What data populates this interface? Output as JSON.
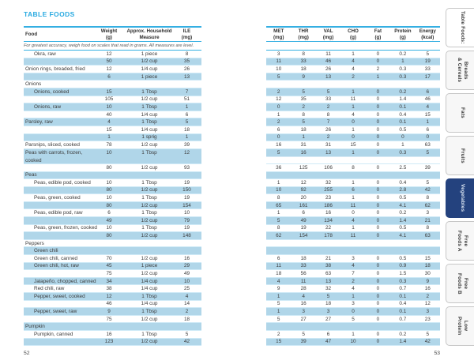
{
  "colors": {
    "accent": "#29aae1",
    "row_highlight": "#b0d6e9",
    "active_tab": "#24427e"
  },
  "page_left": {
    "title": "TABLE FOODS",
    "note": "For greatest accuracy, weigh food on scales that read in grams. All measures are level.",
    "page_number": "52"
  },
  "page_right": {
    "page_number": "53"
  },
  "left_columns": [
    {
      "label": "Food",
      "unit": ""
    },
    {
      "label": "Weight",
      "unit": "(g)"
    },
    {
      "label": "Approx. Household",
      "unit": "Measure"
    },
    {
      "label": "ILE",
      "unit": "(mg)"
    }
  ],
  "right_columns": [
    {
      "label": "MET",
      "unit": "(mg)"
    },
    {
      "label": "THR",
      "unit": "(mg)"
    },
    {
      "label": "VAL",
      "unit": "(mg)"
    },
    {
      "label": "CHO",
      "unit": "(g)"
    },
    {
      "label": "Fat",
      "unit": "(g)"
    },
    {
      "label": "Protein",
      "unit": "(g)"
    },
    {
      "label": "Energy",
      "unit": "(kcal)"
    }
  ],
  "rows": [
    {
      "type": "item",
      "food": "Okra, raw",
      "indent": true,
      "weight": "12",
      "measure": "1 piece",
      "ile": "8",
      "vals": [
        "3",
        "8",
        "11",
        "1",
        "0",
        "0.2",
        "5"
      ],
      "hl": false
    },
    {
      "type": "item",
      "food": "",
      "indent": false,
      "weight": "50",
      "measure": "1/2 cup",
      "ile": "35",
      "vals": [
        "11",
        "33",
        "46",
        "4",
        "0",
        "1",
        "19"
      ],
      "hl": true
    },
    {
      "type": "item",
      "food": "Onion rings, breaded, fried",
      "indent": false,
      "weight": "12",
      "measure": "1/4 cup",
      "ile": "26",
      "vals": [
        "10",
        "18",
        "26",
        "4",
        "2",
        "0.3",
        "33"
      ],
      "hl": false
    },
    {
      "type": "item",
      "food": "",
      "indent": false,
      "weight": "6",
      "measure": "1 piece",
      "ile": "13",
      "vals": [
        "5",
        "9",
        "13",
        "2",
        "1",
        "0.3",
        "17"
      ],
      "hl": true
    },
    {
      "type": "section",
      "food": "Onions",
      "indent": false,
      "hl": false
    },
    {
      "type": "item",
      "food": "Onions, cooked",
      "indent": true,
      "weight": "15",
      "measure": "1 Tbsp",
      "ile": "7",
      "vals": [
        "2",
        "5",
        "5",
        "1",
        "0",
        "0.2",
        "6"
      ],
      "hl": true
    },
    {
      "type": "item",
      "food": "",
      "indent": false,
      "weight": "105",
      "measure": "1/2 cup",
      "ile": "51",
      "vals": [
        "12",
        "35",
        "33",
        "11",
        "0",
        "1.4",
        "46"
      ],
      "hl": false
    },
    {
      "type": "item",
      "food": "Onions, raw",
      "indent": true,
      "weight": "10",
      "measure": "1 Tbsp",
      "ile": "1",
      "vals": [
        "0",
        "2",
        "2",
        "1",
        "0",
        "0.1",
        "4"
      ],
      "hl": true
    },
    {
      "type": "item",
      "food": "",
      "indent": false,
      "weight": "40",
      "measure": "1/4 cup",
      "ile": "6",
      "vals": [
        "1",
        "8",
        "8",
        "4",
        "0",
        "0.4",
        "15"
      ],
      "hl": false
    },
    {
      "type": "item",
      "food": "Parsley, raw",
      "indent": false,
      "weight": "4",
      "measure": "1 Tbsp",
      "ile": "5",
      "vals": [
        "2",
        "5",
        "7",
        "0",
        "0",
        "0.1",
        "1"
      ],
      "hl": true
    },
    {
      "type": "item",
      "food": "",
      "indent": false,
      "weight": "15",
      "measure": "1/4 cup",
      "ile": "18",
      "vals": [
        "6",
        "18",
        "26",
        "1",
        "0",
        "0.5",
        "6"
      ],
      "hl": false
    },
    {
      "type": "item",
      "food": "",
      "indent": false,
      "weight": "1",
      "measure": "1 sprig",
      "ile": "1",
      "vals": [
        "0",
        "1",
        "2",
        "0",
        "0",
        "0",
        "0"
      ],
      "hl": true
    },
    {
      "type": "item",
      "food": "Parsnips, sliced, cooked",
      "indent": false,
      "weight": "78",
      "measure": "1/2 cup",
      "ile": "39",
      "vals": [
        "16",
        "31",
        "31",
        "15",
        "0",
        "1",
        "63"
      ],
      "hl": false
    },
    {
      "type": "item",
      "food": "Peas with carrots, frozen, cooked",
      "indent": false,
      "weight": "10",
      "measure": "1 Tbsp",
      "ile": "12",
      "vals": [
        "5",
        "16",
        "13",
        "1",
        "0",
        "0.3",
        "5"
      ],
      "hl": true,
      "tall": true
    },
    {
      "type": "item",
      "food": "",
      "indent": false,
      "weight": "80",
      "measure": "1/2 cup",
      "ile": "93",
      "vals": [
        "36",
        "125",
        "106",
        "8",
        "0",
        "2.5",
        "39"
      ],
      "hl": false
    },
    {
      "type": "section",
      "food": "Peas",
      "indent": false,
      "hl": true
    },
    {
      "type": "item",
      "food": "Peas, edible pod, cooked",
      "indent": true,
      "weight": "10",
      "measure": "1 Tbsp",
      "ile": "19",
      "vals": [
        "1",
        "12",
        "32",
        "1",
        "0",
        "0.4",
        "5"
      ],
      "hl": false
    },
    {
      "type": "item",
      "food": "",
      "indent": false,
      "weight": "80",
      "measure": "1/2 cup",
      "ile": "150",
      "vals": [
        "10",
        "92",
        "255",
        "6",
        "0",
        "2.8",
        "42"
      ],
      "hl": true
    },
    {
      "type": "item",
      "food": "Peas, green, cooked",
      "indent": true,
      "weight": "10",
      "measure": "1 Tbsp",
      "ile": "19",
      "vals": [
        "8",
        "20",
        "23",
        "1",
        "0",
        "0.5",
        "8"
      ],
      "hl": false
    },
    {
      "type": "item",
      "food": "",
      "indent": false,
      "weight": "80",
      "measure": "1/2 cup",
      "ile": "154",
      "vals": [
        "65",
        "161",
        "186",
        "11",
        "0",
        "4.1",
        "62"
      ],
      "hl": true
    },
    {
      "type": "item",
      "food": "Peas, edible pod, raw",
      "indent": true,
      "weight": "6",
      "measure": "1 Tbsp",
      "ile": "10",
      "vals": [
        "1",
        "6",
        "16",
        "0",
        "0",
        "0.2",
        "3"
      ],
      "hl": false
    },
    {
      "type": "item",
      "food": "",
      "indent": false,
      "weight": "49",
      "measure": "1/2 cup",
      "ile": "79",
      "vals": [
        "5",
        "49",
        "134",
        "4",
        "0",
        "1.4",
        "21"
      ],
      "hl": true
    },
    {
      "type": "item",
      "food": "Peas, green, frozen, cooked",
      "indent": true,
      "weight": "10",
      "measure": "1 Tbsp",
      "ile": "19",
      "vals": [
        "8",
        "19",
        "22",
        "1",
        "0",
        "0.5",
        "8"
      ],
      "hl": false
    },
    {
      "type": "item",
      "food": "",
      "indent": false,
      "weight": "80",
      "measure": "1/2 cup",
      "ile": "148",
      "vals": [
        "62",
        "154",
        "178",
        "11",
        "0",
        "4.1",
        "63"
      ],
      "hl": true
    },
    {
      "type": "section",
      "food": "Peppers",
      "indent": false,
      "hl": false
    },
    {
      "type": "section",
      "food": "Green chili",
      "indent": true,
      "hl": true
    },
    {
      "type": "item",
      "food": "Green chili, canned",
      "indent": true,
      "weight": "70",
      "measure": "1/2 cup",
      "ile": "16",
      "vals": [
        "6",
        "18",
        "21",
        "3",
        "0",
        "0.5",
        "15"
      ],
      "hl": false
    },
    {
      "type": "item",
      "food": "Green chili, hot, raw",
      "indent": true,
      "weight": "45",
      "measure": "1 piece",
      "ile": "29",
      "vals": [
        "11",
        "33",
        "38",
        "4",
        "0",
        "0.9",
        "18"
      ],
      "hl": true
    },
    {
      "type": "item",
      "food": "",
      "indent": false,
      "weight": "75",
      "measure": "1/2 cup",
      "ile": "49",
      "vals": [
        "18",
        "56",
        "63",
        "7",
        "0",
        "1.5",
        "30"
      ],
      "hl": false
    },
    {
      "type": "item",
      "food": "Jalapeño, chopped, canned",
      "indent": true,
      "weight": "34",
      "measure": "1/4 cup",
      "ile": "10",
      "vals": [
        "4",
        "11",
        "13",
        "2",
        "0",
        "0.3",
        "9"
      ],
      "hl": true
    },
    {
      "type": "item",
      "food": "Red chili, raw",
      "indent": true,
      "weight": "38",
      "measure": "1/4 cup",
      "ile": "25",
      "vals": [
        "9",
        "28",
        "32",
        "4",
        "0",
        "0.7",
        "16"
      ],
      "hl": false
    },
    {
      "type": "item",
      "food": "Pepper, sweet, cooked",
      "indent": true,
      "weight": "12",
      "measure": "1 Tbsp",
      "ile": "4",
      "vals": [
        "1",
        "4",
        "5",
        "1",
        "0",
        "0.1",
        "2"
      ],
      "hl": true
    },
    {
      "type": "item",
      "food": "",
      "indent": false,
      "weight": "46",
      "measure": "1/4 cup",
      "ile": "14",
      "vals": [
        "5",
        "16",
        "18",
        "3",
        "0",
        "0.4",
        "12"
      ],
      "hl": false
    },
    {
      "type": "item",
      "food": "Pepper, sweet, raw",
      "indent": true,
      "weight": "9",
      "measure": "1 Tbsp",
      "ile": "2",
      "vals": [
        "1",
        "3",
        "3",
        "0",
        "0",
        "0.1",
        "3"
      ],
      "hl": true
    },
    {
      "type": "item",
      "food": "",
      "indent": false,
      "weight": "75",
      "measure": "1/2 cup",
      "ile": "18",
      "vals": [
        "5",
        "27",
        "27",
        "5",
        "0",
        "0.7",
        "23"
      ],
      "hl": false
    },
    {
      "type": "section",
      "food": "Pumpkin",
      "indent": false,
      "hl": true
    },
    {
      "type": "item",
      "food": "Pumpkin, canned",
      "indent": true,
      "weight": "16",
      "measure": "1 Tbsp",
      "ile": "5",
      "vals": [
        "2",
        "5",
        "6",
        "1",
        "0",
        "0.2",
        "5"
      ],
      "hl": false
    },
    {
      "type": "item",
      "food": "",
      "indent": false,
      "weight": "123",
      "measure": "1/2 cup",
      "ile": "42",
      "vals": [
        "15",
        "39",
        "47",
        "10",
        "0",
        "1.4",
        "42"
      ],
      "hl": true
    }
  ],
  "tabs": {
    "active_index": 4,
    "items": [
      {
        "id": "table-foods",
        "label": "Table Foods:"
      },
      {
        "id": "breads-cereals",
        "label": "Breads\n& Cereals"
      },
      {
        "id": "fats",
        "label": "Fats"
      },
      {
        "id": "fruits",
        "label": "Fruits"
      },
      {
        "id": "vegetables",
        "label": "Vegetables"
      },
      {
        "id": "free-foods-a",
        "label": "Free\nFoods A"
      },
      {
        "id": "free-foods-b",
        "label": "Free\nFoods B"
      },
      {
        "id": "low-protein",
        "label": "Low\nProtein"
      }
    ]
  }
}
